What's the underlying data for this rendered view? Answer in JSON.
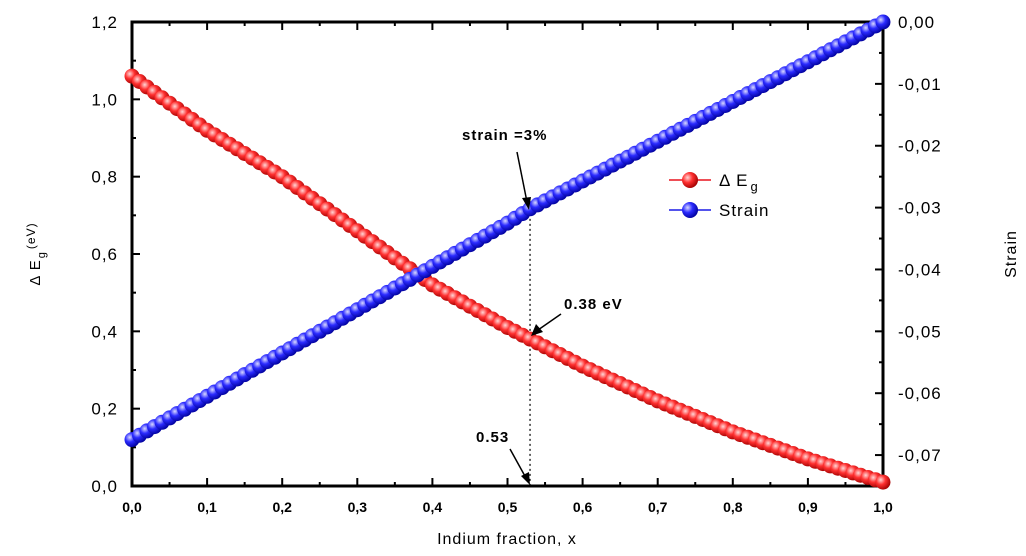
{
  "chart_data": {
    "type": "scatter",
    "xlabel": "Indium fraction, x",
    "ylabel_left": "Δ E",
    "ylabel_left_sub": "g",
    "ylabel_left_unit": "(eV)",
    "ylabel_right": "Strain",
    "xlim": [
      0,
      1
    ],
    "ylim_left": [
      0,
      1.2
    ],
    "ylim_right": [
      -0.075,
      0
    ],
    "x_ticks": [
      "0,0",
      "0,1",
      "0,2",
      "0,3",
      "0,4",
      "0,5",
      "0,6",
      "0,7",
      "0,8",
      "0,9",
      "1,0"
    ],
    "y_left_ticks": [
      "0,0",
      "0,2",
      "0,4",
      "0,6",
      "0,8",
      "1,0",
      "1,2"
    ],
    "y_right_ticks": [
      "0,00",
      "-0,01",
      "-0,02",
      "-0,03",
      "-0,04",
      "-0,05",
      "-0,06",
      "-0,07"
    ],
    "grid": false,
    "legend_position": "right",
    "series": [
      {
        "name": "Δ E",
        "name_sub": "g",
        "axis": "left",
        "color": "#e8141e",
        "x_start": 0,
        "x_end": 1,
        "points": 101,
        "values_at": {
          "0.0": 1.06,
          "0.1": 0.92,
          "0.2": 0.8,
          "0.3": 0.66,
          "0.4": 0.52,
          "0.5": 0.41,
          "0.53": 0.38,
          "0.6": 0.31,
          "0.7": 0.22,
          "0.8": 0.14,
          "0.9": 0.07,
          "1.0": 0.01
        }
      },
      {
        "name": "Strain",
        "axis": "right",
        "color": "#1a1ae6",
        "x_start": 0,
        "x_end": 1,
        "points": 101,
        "values_at": {
          "0.0": -0.0675,
          "0.5": -0.0325,
          "0.53": -0.0302,
          "1.0": 0.0
        }
      }
    ],
    "annotations": [
      {
        "text": "strain  =3%",
        "x": 0.53,
        "axis": "right",
        "y": -0.0302
      },
      {
        "text": "0.38 eV",
        "x": 0.53,
        "axis": "left",
        "y": 0.38
      },
      {
        "text": "0.53",
        "x": 0.53,
        "axis": "left",
        "y": 0.0
      }
    ],
    "marker_x": 0.53
  }
}
